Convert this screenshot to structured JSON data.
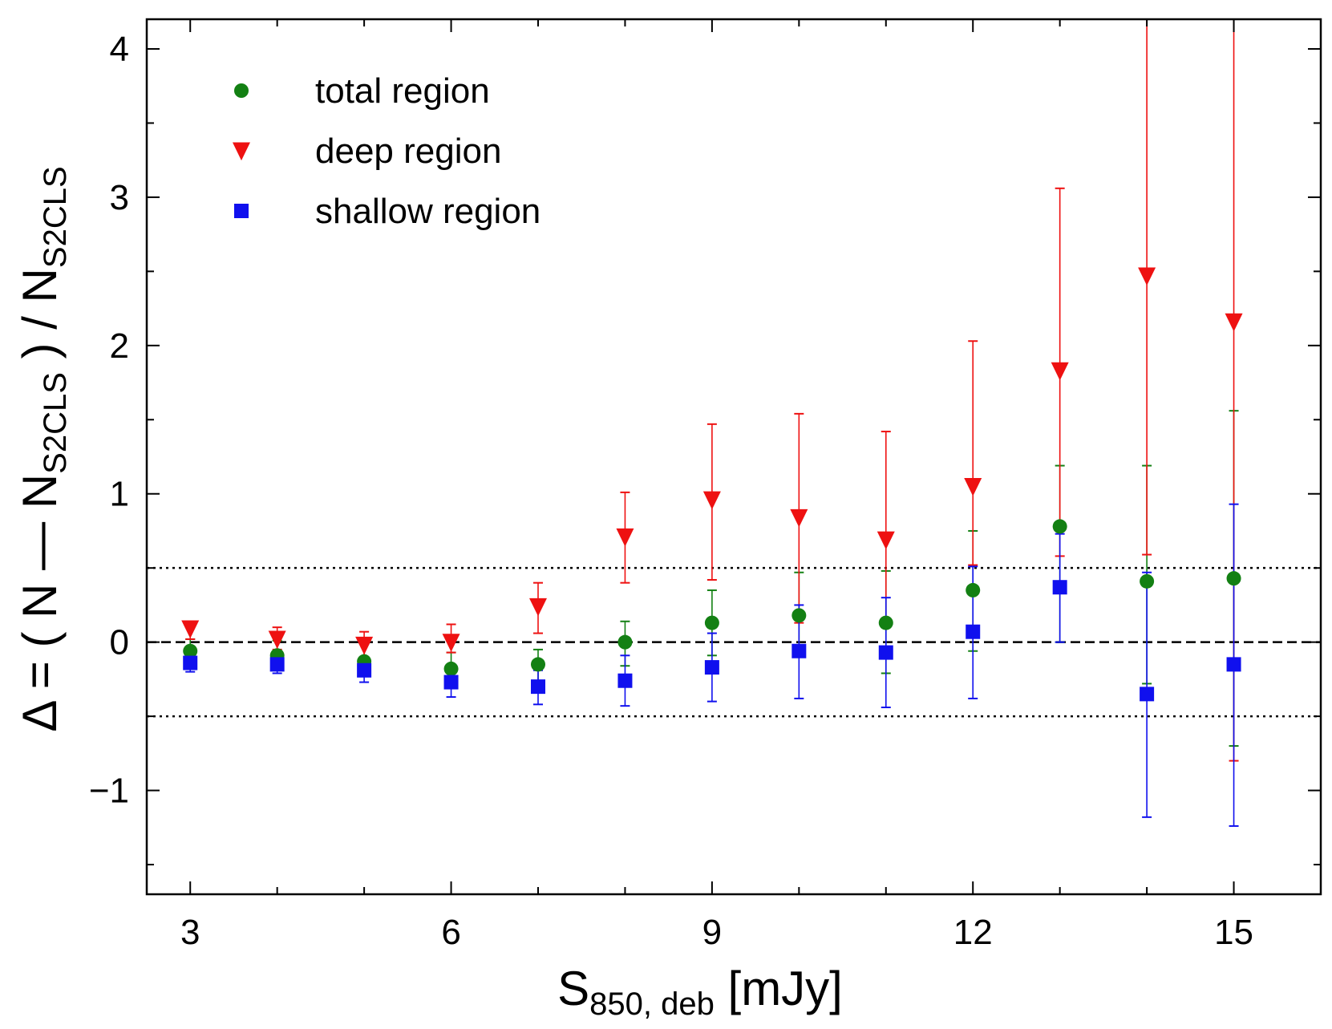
{
  "chart_data": {
    "type": "scatter",
    "xlabel": {
      "main": "S",
      "sub": "850, deb",
      "unit": " [mJy]"
    },
    "ylabel": {
      "parts": [
        "Δ = ( N — N",
        "S2CLS",
        " ) / N",
        "S2CLS"
      ]
    },
    "xlim": [
      2.5,
      16
    ],
    "ylim": [
      -1.7,
      4.2
    ],
    "xticks": [
      3,
      6,
      9,
      12,
      15
    ],
    "yticks": [
      -1,
      0,
      1,
      2,
      3,
      4
    ],
    "ytick_labels": [
      "−1",
      "0",
      "1",
      "2",
      "3",
      "4"
    ],
    "reference_lines": [
      {
        "y": 0,
        "style": "dashed"
      },
      {
        "y": 0.5,
        "style": "dotted"
      },
      {
        "y": -0.5,
        "style": "dotted"
      }
    ],
    "series": [
      {
        "name": "total region",
        "marker": "circle",
        "color": "#138013",
        "x": [
          3,
          4,
          5,
          6,
          7,
          8,
          9,
          10,
          11,
          12,
          13,
          14,
          15
        ],
        "y": [
          -0.06,
          -0.09,
          -0.13,
          -0.18,
          -0.15,
          0.0,
          0.13,
          0.18,
          0.13,
          0.35,
          0.78,
          0.41,
          0.43
        ],
        "err_low": [
          -0.14,
          -0.16,
          -0.21,
          -0.29,
          -0.28,
          -0.16,
          -0.09,
          -0.05,
          -0.21,
          -0.06,
          0.0,
          -0.28,
          -0.7
        ],
        "err_high": [
          0.02,
          0.01,
          0.0,
          -0.07,
          -0.05,
          0.14,
          0.35,
          0.47,
          0.48,
          0.75,
          1.19,
          1.19,
          1.56
        ]
      },
      {
        "name": "deep region",
        "marker": "triangle-down",
        "color": "#ee1111",
        "x": [
          3,
          4,
          5,
          6,
          7,
          8,
          9,
          10,
          11,
          12,
          13,
          14,
          15
        ],
        "y": [
          0.09,
          0.02,
          -0.02,
          0.0,
          0.24,
          0.71,
          0.96,
          0.84,
          0.69,
          1.05,
          1.83,
          2.47,
          2.16
        ],
        "err_low": [
          0.02,
          -0.05,
          -0.1,
          -0.07,
          0.06,
          0.4,
          0.42,
          0.13,
          0.13,
          0.52,
          0.58,
          0.59,
          -0.8
        ],
        "err_high": [
          0.14,
          0.1,
          0.07,
          0.12,
          0.4,
          1.01,
          1.47,
          1.54,
          1.42,
          2.03,
          3.06,
          4.2,
          4.2
        ]
      },
      {
        "name": "shallow region",
        "marker": "square",
        "color": "#1010ee",
        "x": [
          3,
          4,
          5,
          6,
          7,
          8,
          9,
          10,
          11,
          12,
          13,
          14,
          15
        ],
        "y": [
          -0.14,
          -0.15,
          -0.19,
          -0.27,
          -0.3,
          -0.26,
          -0.17,
          -0.06,
          -0.07,
          0.07,
          0.37,
          -0.35,
          -0.15
        ],
        "err_low": [
          -0.2,
          -0.21,
          -0.27,
          -0.37,
          -0.42,
          -0.43,
          -0.4,
          -0.38,
          -0.44,
          -0.38,
          0.0,
          -1.18,
          -1.24
        ],
        "err_high": [
          -0.09,
          -0.1,
          -0.13,
          -0.18,
          -0.19,
          -0.09,
          0.06,
          0.25,
          0.3,
          0.51,
          0.73,
          0.47,
          0.93
        ]
      }
    ],
    "legend": {
      "placement": "top-left",
      "entries": [
        "total region",
        "deep region",
        "shallow region"
      ]
    }
  }
}
